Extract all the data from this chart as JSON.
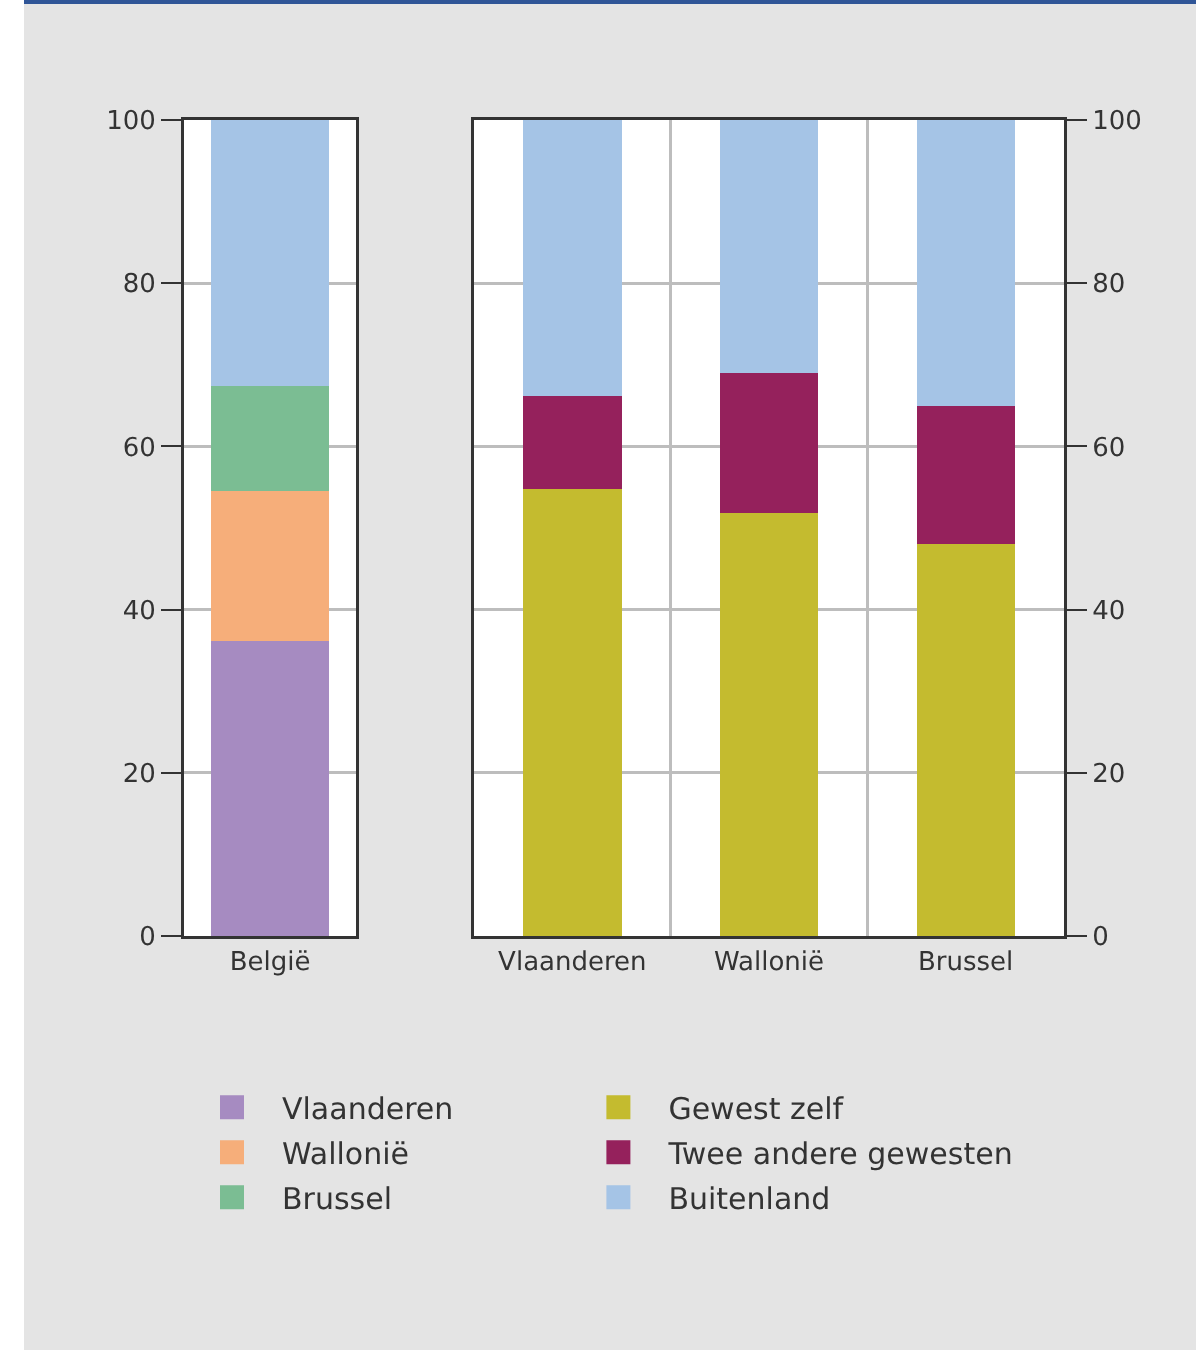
{
  "chart_data": [
    {
      "type": "bar",
      "categories": [
        "België"
      ],
      "stacked": true,
      "ylim": [
        0,
        100
      ],
      "yticks": [
        0,
        20,
        40,
        60,
        80,
        100
      ],
      "grid": "y",
      "legend": "bottom",
      "series": [
        {
          "name": "Vlaanderen",
          "color": "#a68bc1",
          "values": [
            36.1
          ]
        },
        {
          "name": "Wallonië",
          "color": "#f6ae7a",
          "values": [
            18.4
          ]
        },
        {
          "name": "Brussel",
          "color": "#7bbd93",
          "values": [
            12.9
          ]
        },
        {
          "color": "#a5c4e6",
          "values": [
            32.6
          ]
        }
      ]
    },
    {
      "type": "bar",
      "categories": [
        "Vlaanderen",
        "Wallonië",
        "Brussel"
      ],
      "stacked": true,
      "ylim": [
        0,
        100
      ],
      "yticks": [
        0,
        20,
        40,
        60,
        80,
        100
      ],
      "grid": true,
      "legend": "bottom",
      "series": [
        {
          "name": "Gewest zelf",
          "color": "#c4bb2f",
          "values": [
            54.8,
            51.9,
            48.0
          ]
        },
        {
          "name": "Twee andere gewesten",
          "color": "#95215c",
          "values": [
            11.4,
            17.1,
            16.9
          ]
        },
        {
          "name": "Buitenland",
          "color": "#a5c4e6",
          "values": [
            33.8,
            31.0,
            35.1
          ]
        }
      ]
    }
  ]
}
